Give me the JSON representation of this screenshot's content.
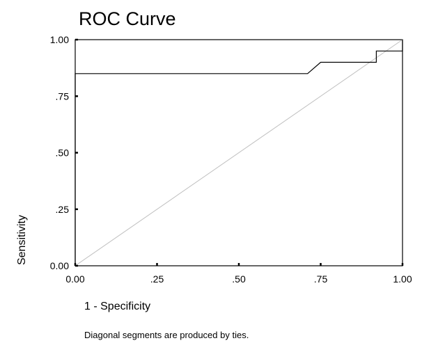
{
  "chart_data": {
    "type": "line",
    "title": "ROC Curve",
    "xlabel": "1 - Specificity",
    "ylabel": "Sensitivity",
    "xlim": [
      0,
      1
    ],
    "ylim": [
      0,
      1
    ],
    "x_ticks": [
      "0.00",
      ".25",
      ".50",
      ".75",
      "1.00"
    ],
    "y_ticks": [
      "0.00",
      ".25",
      ".50",
      ".75",
      "1.00"
    ],
    "grid": false,
    "footnote": "Diagonal segments are produced by ties.",
    "series": [
      {
        "style": "step",
        "color": "#000000",
        "points": [
          [
            0.0,
            0.0
          ],
          [
            0.0,
            0.85
          ],
          [
            0.71,
            0.85
          ],
          [
            0.75,
            0.9
          ],
          [
            0.92,
            0.9
          ],
          [
            0.92,
            0.95
          ],
          [
            1.0,
            0.95
          ],
          [
            1.0,
            1.0
          ]
        ]
      },
      {
        "style": "reference",
        "color": "#c0c0c0",
        "points": [
          [
            0.0,
            0.0
          ],
          [
            1.0,
            1.0
          ]
        ]
      }
    ]
  }
}
